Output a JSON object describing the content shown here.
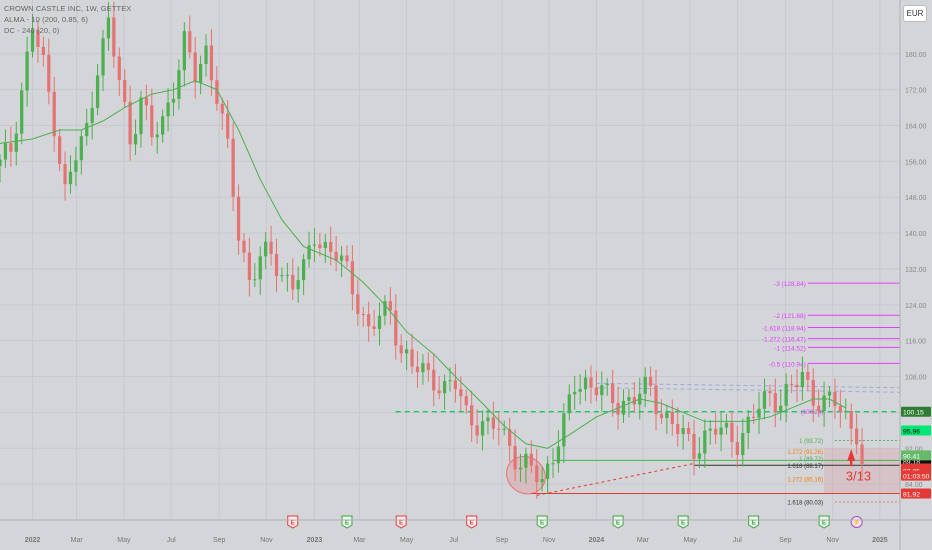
{
  "legend": {
    "title": "CROWN CASTLE INC, 1W, GETTEX",
    "alma": "ALMA - 10 (200, 0.85, 6)",
    "dc": "DC - 240 (20, 0)"
  },
  "currency_button": "EUR",
  "colors": {
    "up": "#4caf50",
    "down": "#e57373",
    "alma": "#4caf50",
    "fib": "#e040fb",
    "dash_green": "#00c853",
    "red_line": "#e53935",
    "orange": "#f57c00"
  },
  "earnings_badges": [
    {
      "x": "2022-12-05",
      "label": "E",
      "type": "down"
    },
    {
      "x": "2023-02-13",
      "label": "E",
      "type": "up"
    },
    {
      "x": "2023-04-24",
      "label": "E",
      "type": "down"
    },
    {
      "x": "2023-07-24",
      "label": "E",
      "type": "down"
    },
    {
      "x": "2023-10-23",
      "label": "E",
      "type": "up"
    },
    {
      "x": "2024-01-29",
      "label": "E",
      "type": "up"
    },
    {
      "x": "2024-04-22",
      "label": "E",
      "type": "up"
    },
    {
      "x": "2024-07-22",
      "label": "E",
      "type": "up"
    },
    {
      "x": "2024-10-21",
      "label": "E",
      "type": "up"
    },
    {
      "x": "2024-12-02",
      "label": "⚡",
      "type": "event"
    }
  ],
  "annotation_count": "3/13",
  "chart_data": {
    "type": "candlestick",
    "title": "CROWN CASTLE INC, 1W, GETTEX",
    "currency": "EUR",
    "ylim": [
      76,
      192
    ],
    "y_ticks": [
      84,
      92,
      100,
      108,
      116,
      124,
      132,
      140,
      148,
      156,
      164,
      172,
      180
    ],
    "x_ticks": [
      {
        "label": "2022",
        "x": "2022-01-03"
      },
      {
        "label": "Mar",
        "x": "2022-03-01"
      },
      {
        "label": "May",
        "x": "2022-05-01"
      },
      {
        "label": "Jul",
        "x": "2022-07-01"
      },
      {
        "label": "Sep",
        "x": "2022-09-01"
      },
      {
        "label": "Nov",
        "x": "2022-11-01"
      },
      {
        "label": "2023",
        "x": "2023-01-02"
      },
      {
        "label": "Mar",
        "x": "2023-03-01"
      },
      {
        "label": "May",
        "x": "2023-05-01"
      },
      {
        "label": "Jul",
        "x": "2023-07-01"
      },
      {
        "label": "Sep",
        "x": "2023-09-01"
      },
      {
        "label": "Nov",
        "x": "2023-11-01"
      },
      {
        "label": "2024",
        "x": "2024-01-01"
      },
      {
        "label": "Mar",
        "x": "2024-03-01"
      },
      {
        "label": "May",
        "x": "2024-05-01"
      },
      {
        "label": "Jul",
        "x": "2024-07-01"
      },
      {
        "label": "Sep",
        "x": "2024-09-01"
      },
      {
        "label": "Nov",
        "x": "2024-11-01"
      },
      {
        "label": "2025",
        "x": "2025-01-01"
      }
    ],
    "x_start": "2021-11-22",
    "x_end": "2025-01-27",
    "close_path": [
      [
        "2021-11-22",
        155
      ],
      [
        "2021-12-06",
        159
      ],
      [
        "2021-12-20",
        172
      ],
      [
        "2022-01-03",
        186
      ],
      [
        "2022-01-17",
        177
      ],
      [
        "2022-01-31",
        165
      ],
      [
        "2022-02-14",
        149
      ],
      [
        "2022-02-28",
        157
      ],
      [
        "2022-03-14",
        163
      ],
      [
        "2022-03-28",
        178
      ],
      [
        "2022-04-11",
        186
      ],
      [
        "2022-04-25",
        174
      ],
      [
        "2022-05-09",
        161
      ],
      [
        "2022-05-23",
        170
      ],
      [
        "2022-06-06",
        161
      ],
      [
        "2022-06-20",
        165
      ],
      [
        "2022-07-04",
        173
      ],
      [
        "2022-07-18",
        182
      ],
      [
        "2022-08-01",
        175
      ],
      [
        "2022-08-15",
        181
      ],
      [
        "2022-08-29",
        171
      ],
      [
        "2022-09-12",
        158
      ],
      [
        "2022-09-26",
        140
      ],
      [
        "2022-10-10",
        130
      ],
      [
        "2022-10-24",
        134
      ],
      [
        "2022-11-07",
        135
      ],
      [
        "2022-11-21",
        131
      ],
      [
        "2022-12-05",
        129
      ],
      [
        "2022-12-19",
        131
      ],
      [
        "2023-01-02",
        140
      ],
      [
        "2023-01-16",
        137
      ],
      [
        "2023-01-30",
        135
      ],
      [
        "2023-02-13",
        131
      ],
      [
        "2023-02-27",
        125
      ],
      [
        "2023-03-13",
        118
      ],
      [
        "2023-03-27",
        121
      ],
      [
        "2023-04-10",
        123
      ],
      [
        "2023-04-24",
        114
      ],
      [
        "2023-05-08",
        110
      ],
      [
        "2023-05-22",
        109
      ],
      [
        "2023-06-05",
        108
      ],
      [
        "2023-06-19",
        105
      ],
      [
        "2023-07-03",
        106
      ],
      [
        "2023-07-17",
        100
      ],
      [
        "2023-07-31",
        98
      ],
      [
        "2023-08-14",
        96
      ],
      [
        "2023-08-28",
        97
      ],
      [
        "2023-09-11",
        93
      ],
      [
        "2023-09-25",
        88
      ],
      [
        "2023-10-09",
        87
      ],
      [
        "2023-10-23",
        85
      ],
      [
        "2023-11-06",
        91
      ],
      [
        "2023-11-20",
        97
      ],
      [
        "2023-12-04",
        106
      ],
      [
        "2023-12-18",
        107
      ],
      [
        "2024-01-01",
        106
      ],
      [
        "2024-01-15",
        103
      ],
      [
        "2024-01-29",
        102
      ],
      [
        "2024-02-12",
        103
      ],
      [
        "2024-02-26",
        104
      ],
      [
        "2024-03-11",
        105
      ],
      [
        "2024-03-25",
        100
      ],
      [
        "2024-04-08",
        98
      ],
      [
        "2024-04-22",
        94
      ],
      [
        "2024-05-06",
        92
      ],
      [
        "2024-05-20",
        95
      ],
      [
        "2024-06-03",
        96
      ],
      [
        "2024-06-17",
        95
      ],
      [
        "2024-07-01",
        94
      ],
      [
        "2024-07-15",
        97
      ],
      [
        "2024-07-29",
        101
      ],
      [
        "2024-08-12",
        104
      ],
      [
        "2024-08-26",
        103
      ],
      [
        "2024-09-09",
        105
      ],
      [
        "2024-09-23",
        108
      ],
      [
        "2024-10-07",
        104
      ],
      [
        "2024-10-21",
        102
      ],
      [
        "2024-11-04",
        102
      ],
      [
        "2024-11-18",
        99
      ],
      [
        "2024-12-02",
        96
      ],
      [
        "2024-12-09",
        88
      ]
    ],
    "alma_path": [
      [
        "2021-11-22",
        160
      ],
      [
        "2022-01-03",
        161
      ],
      [
        "2022-02-07",
        163
      ],
      [
        "2022-03-07",
        163
      ],
      [
        "2022-04-04",
        165
      ],
      [
        "2022-05-02",
        168
      ],
      [
        "2022-06-06",
        171
      ],
      [
        "2022-07-04",
        172
      ],
      [
        "2022-08-01",
        174
      ],
      [
        "2022-08-29",
        172
      ],
      [
        "2022-09-26",
        163
      ],
      [
        "2022-10-24",
        152
      ],
      [
        "2022-11-21",
        143
      ],
      [
        "2022-12-19",
        137
      ],
      [
        "2023-01-30",
        134
      ],
      [
        "2023-03-06",
        129
      ],
      [
        "2023-04-03",
        124
      ],
      [
        "2023-05-01",
        118
      ],
      [
        "2023-06-05",
        113
      ],
      [
        "2023-07-03",
        108
      ],
      [
        "2023-08-07",
        102
      ],
      [
        "2023-09-04",
        97
      ],
      [
        "2023-10-02",
        93
      ],
      [
        "2023-10-30",
        92
      ],
      [
        "2023-11-27",
        95
      ],
      [
        "2024-01-01",
        99
      ],
      [
        "2024-01-29",
        101
      ],
      [
        "2024-02-26",
        103
      ],
      [
        "2024-03-25",
        102
      ],
      [
        "2024-04-22",
        100
      ],
      [
        "2024-05-20",
        98
      ],
      [
        "2024-06-17",
        98
      ],
      [
        "2024-07-15",
        98
      ],
      [
        "2024-08-12",
        99
      ],
      [
        "2024-09-09",
        101
      ],
      [
        "2024-10-07",
        103
      ],
      [
        "2024-10-28",
        103
      ],
      [
        "2024-11-18",
        101
      ]
    ],
    "fib_levels": [
      {
        "label": "-3 (128.84)",
        "value": 128.84
      },
      {
        "label": "-2 (121.68)",
        "value": 121.68
      },
      {
        "label": "-1.618 (118.94)",
        "value": 118.94
      },
      {
        "label": "-1.272 (116.47)",
        "value": 116.47
      },
      {
        "label": "-1 (114.52)",
        "value": 114.52
      },
      {
        "label": "-0.5 (110.94)",
        "value": 110.94
      }
    ],
    "level_labels": [
      {
        "label": "(100.20)",
        "value": 100.2,
        "color": "#e040fb"
      },
      {
        "label": "1 (93.72)",
        "value": 93.72,
        "color": "#4caf50"
      },
      {
        "label": "1.272 (91.26)",
        "value": 91.26,
        "color": "#f57c00"
      },
      {
        "label": "1 (89.72)",
        "value": 89.72,
        "color": "#4caf50"
      },
      {
        "label": "1.618 (88.17)",
        "value": 88.17,
        "color": "#333333"
      },
      {
        "label": "1.272 (85.16)",
        "value": 85.16,
        "color": "#f57c00"
      },
      {
        "label": "1.618 (80.03)",
        "value": 80.03,
        "color": "#333333"
      }
    ],
    "price_labels": [
      {
        "text": "100.15",
        "value": 100.15,
        "bg": "#2e7d32",
        "fg": "#ffffff"
      },
      {
        "text": "95.96",
        "value": 95.96,
        "bg": "#00e676",
        "fg": "#000000"
      },
      {
        "text": "89.18",
        "value": 89.18,
        "bg": "#111111",
        "fg": "#ffffff"
      },
      {
        "text": "90.41",
        "value": 90.41,
        "bg": "#66bb6a",
        "fg": "#ffffff"
      },
      {
        "text": "87.50",
        "value": 87.5,
        "bg": "#e53935",
        "fg": "#ffffff"
      },
      {
        "text": "87.05",
        "value": 87.05,
        "bg": "#e53935",
        "fg": "#ffffff"
      },
      {
        "text": "01:03:50",
        "value": 85.9,
        "bg": "#e53935",
        "fg": "#ffffff"
      },
      {
        "text": "81.92",
        "value": 81.92,
        "bg": "#e53935",
        "fg": "#ffffff"
      }
    ]
  }
}
